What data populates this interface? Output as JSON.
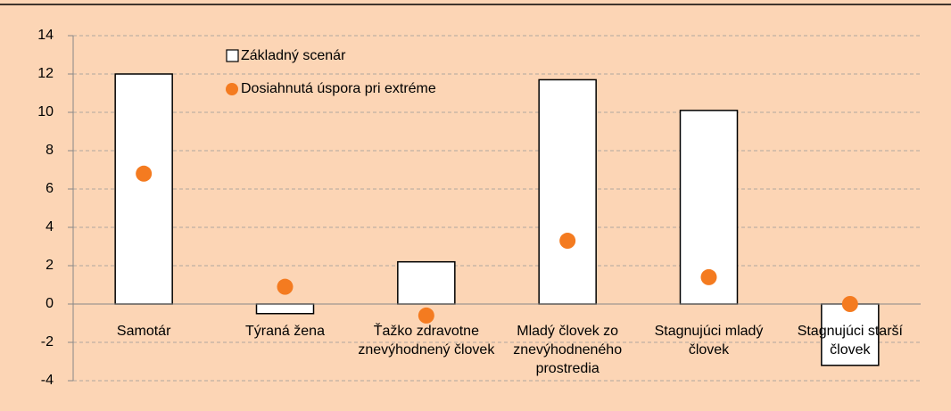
{
  "chart_data": {
    "type": "bar",
    "categories": [
      "Samotár",
      "Týraná žena",
      "Ťažko zdravotne znevýhodnený človek",
      "Mladý človek zo znevýhodneného prostredia",
      "Stagnujúci mladý človek",
      "Stagnujúci starší človek"
    ],
    "series": [
      {
        "name": "Základný scenár",
        "color": "#ffffff",
        "values": [
          12,
          -0.5,
          2.2,
          11.7,
          10.1,
          -3.2
        ]
      },
      {
        "name": "Dosiahnutá úspora pri extréme",
        "color": "#f47b20",
        "values": [
          6.8,
          0.9,
          -0.6,
          3.3,
          1.4,
          0.0
        ]
      }
    ],
    "ylim": [
      -4,
      14
    ],
    "yticks": [
      -4,
      -2,
      0,
      2,
      4,
      6,
      8,
      10,
      12,
      14
    ],
    "grid": true
  }
}
